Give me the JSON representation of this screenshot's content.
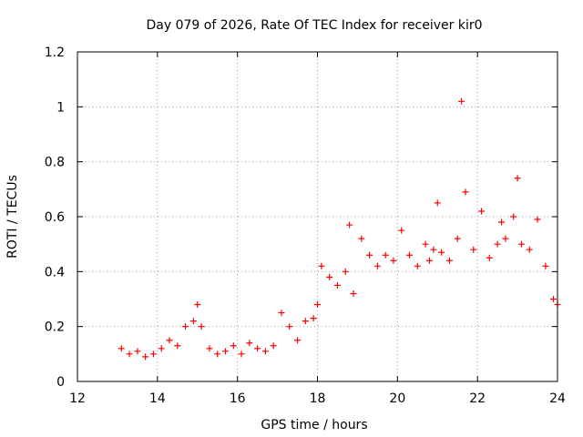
{
  "chart_data": {
    "type": "scatter",
    "title": "Day 079 of 2026, Rate Of TEC Index for receiver kir0",
    "xlabel": "GPS time / hours",
    "ylabel": "ROTI / TECUs",
    "xlim": [
      12,
      24
    ],
    "ylim": [
      0,
      1.2
    ],
    "xticks": [
      12,
      14,
      16,
      18,
      20,
      22,
      24
    ],
    "yticks": [
      0,
      0.2,
      0.4,
      0.6,
      0.8,
      1,
      1.2
    ],
    "xtick_labels": [
      "12",
      "14",
      "16",
      "18",
      "20",
      "22",
      "24"
    ],
    "ytick_labels": [
      "0",
      "0.2",
      "0.4",
      "0.6",
      "0.8",
      "1",
      "1.2"
    ],
    "grid": true,
    "legend": "none",
    "marker": "+",
    "color": "#ff0000",
    "x": [
      13.1,
      13.3,
      13.5,
      13.7,
      13.9,
      14.1,
      14.3,
      14.5,
      14.7,
      14.9,
      15.0,
      15.1,
      15.3,
      15.5,
      15.7,
      15.9,
      16.1,
      16.3,
      16.5,
      16.7,
      16.9,
      17.1,
      17.3,
      17.5,
      17.7,
      17.9,
      18.0,
      18.1,
      18.3,
      18.5,
      18.7,
      18.8,
      18.9,
      19.1,
      19.3,
      19.5,
      19.7,
      19.9,
      20.1,
      20.3,
      20.5,
      20.7,
      20.8,
      20.9,
      21.0,
      21.1,
      21.3,
      21.5,
      21.6,
      21.7,
      21.9,
      22.1,
      22.3,
      22.5,
      22.6,
      22.7,
      22.9,
      23.0,
      23.1,
      23.3,
      23.5,
      23.7,
      23.9,
      24.0
    ],
    "y": [
      0.12,
      0.1,
      0.11,
      0.09,
      0.1,
      0.12,
      0.15,
      0.13,
      0.2,
      0.22,
      0.28,
      0.2,
      0.12,
      0.1,
      0.11,
      0.13,
      0.1,
      0.14,
      0.12,
      0.11,
      0.13,
      0.25,
      0.2,
      0.15,
      0.22,
      0.23,
      0.28,
      0.42,
      0.38,
      0.35,
      0.4,
      0.57,
      0.32,
      0.52,
      0.46,
      0.42,
      0.46,
      0.44,
      0.55,
      0.46,
      0.42,
      0.5,
      0.44,
      0.48,
      0.65,
      0.47,
      0.44,
      0.52,
      1.02,
      0.69,
      0.48,
      0.62,
      0.45,
      0.5,
      0.58,
      0.52,
      0.6,
      0.74,
      0.5,
      0.48,
      0.59,
      0.42,
      0.3,
      0.28
    ]
  }
}
